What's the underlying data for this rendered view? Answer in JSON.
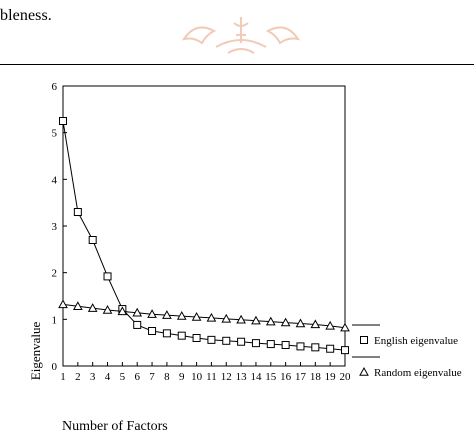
{
  "document": {
    "top_text": "bleness."
  },
  "chart_data": {
    "type": "line",
    "title": "",
    "xlabel": "Number of Factors",
    "ylabel": "Eigenvalue",
    "x": [
      1,
      2,
      3,
      4,
      5,
      6,
      7,
      8,
      9,
      10,
      11,
      12,
      13,
      14,
      15,
      16,
      17,
      18,
      19,
      20
    ],
    "xlim": [
      1,
      20
    ],
    "ylim": [
      0,
      6
    ],
    "yticks": [
      0,
      1,
      2,
      3,
      4,
      5,
      6
    ],
    "grid": false,
    "legend_position": "right",
    "series": [
      {
        "name": "English eigenvalue",
        "marker": "square",
        "values": [
          5.25,
          3.3,
          2.7,
          1.92,
          1.22,
          0.88,
          0.75,
          0.7,
          0.65,
          0.6,
          0.56,
          0.54,
          0.52,
          0.49,
          0.47,
          0.45,
          0.42,
          0.4,
          0.37,
          0.34
        ]
      },
      {
        "name": "Random eigenvalue",
        "marker": "triangle",
        "values": [
          1.32,
          1.28,
          1.24,
          1.2,
          1.17,
          1.14,
          1.11,
          1.09,
          1.07,
          1.05,
          1.03,
          1.01,
          0.99,
          0.97,
          0.95,
          0.93,
          0.91,
          0.89,
          0.86,
          0.82
        ]
      }
    ]
  }
}
